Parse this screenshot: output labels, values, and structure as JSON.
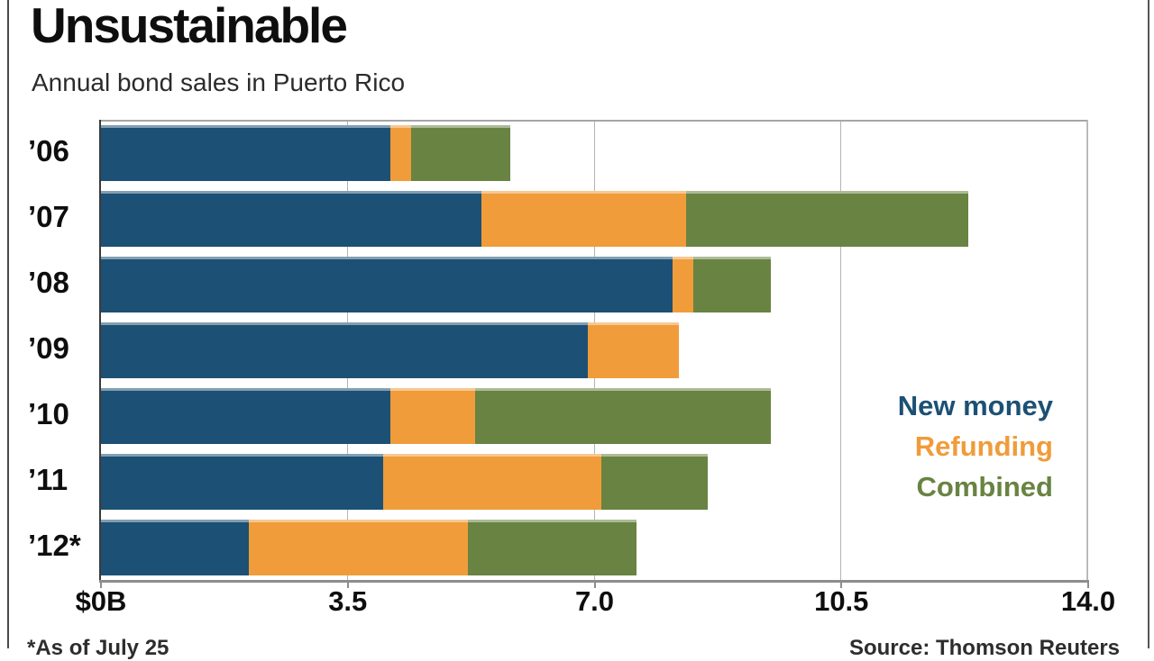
{
  "title": "Unsustainable",
  "subtitle": "Annual bond sales in Puerto Rico",
  "footnote": "*As of July 25",
  "source": "Source: Thomson Reuters",
  "colors": {
    "new_money": "#1c5074",
    "refunding": "#f09c3a",
    "combined": "#698342",
    "gridline": "#b4b4b4",
    "axis": "#3a3a3a",
    "text": "#0e0e0e"
  },
  "legend": {
    "position": "right-middle",
    "items": [
      {
        "label": "New money",
        "color": "#1c5074"
      },
      {
        "label": "Refunding",
        "color": "#f09c3a"
      },
      {
        "label": "Combined",
        "color": "#698342"
      }
    ]
  },
  "chart_data": {
    "type": "bar",
    "orientation": "horizontal",
    "stacked": true,
    "title": "Unsustainable",
    "subtitle": "Annual bond sales in Puerto Rico",
    "categories": [
      "’06",
      "’07",
      "’08",
      "’09",
      "’10",
      "’11",
      "’12*"
    ],
    "series": [
      {
        "name": "New money",
        "color": "#1c5074",
        "values": [
          4.1,
          5.4,
          8.1,
          6.9,
          4.1,
          4.0,
          2.1
        ]
      },
      {
        "name": "Refunding",
        "color": "#f09c3a",
        "values": [
          0.3,
          2.9,
          0.3,
          1.3,
          1.2,
          3.1,
          3.1
        ]
      },
      {
        "name": "Combined",
        "color": "#698342",
        "values": [
          1.4,
          4.0,
          1.1,
          0.0,
          4.2,
          1.5,
          2.4
        ]
      }
    ],
    "totals": [
      5.8,
      12.3,
      9.5,
      8.2,
      9.5,
      8.6,
      7.6
    ],
    "unit": "billions of US dollars",
    "xlabel": "",
    "ylabel": "",
    "x_ticks": [
      {
        "label": "$0B",
        "value": 0
      },
      {
        "label": "3.5",
        "value": 3.5
      },
      {
        "label": "7.0",
        "value": 7.0
      },
      {
        "label": "10.5",
        "value": 10.5
      },
      {
        "label": "14.0",
        "value": 14.0
      }
    ],
    "xlim": [
      0,
      14.0
    ],
    "grid": "vertical-only",
    "legend_position": "inside-right"
  }
}
